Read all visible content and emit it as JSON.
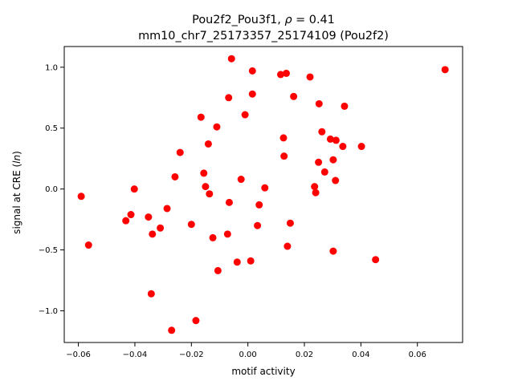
{
  "figure": {
    "title_line1_prefix": "Pou2f2_Pou3f1, ",
    "title_line1_rho": "ρ",
    "title_line1_suffix": " = 0.41",
    "title_line2": "mm10_chr7_25173357_25174109 (Pou2f2)"
  },
  "chart_data": {
    "type": "scatter",
    "title": "Pou2f2_Pou3f1, ρ = 0.41\nmm10_chr7_25173357_25174109 (Pou2f2)",
    "xlabel": "motif activity",
    "ylabel_prefix": "signal at CRE (",
    "ylabel_italic": "ln",
    "ylabel_suffix": ")",
    "xlim": [
      -0.065,
      0.076
    ],
    "ylim": [
      -1.26,
      1.17
    ],
    "xticks": [
      -0.06,
      -0.04,
      -0.02,
      0.0,
      0.02,
      0.04,
      0.06
    ],
    "xtick_labels": [
      "−0.06",
      "−0.04",
      "−0.02",
      "0.00",
      "0.02",
      "0.04",
      "0.06"
    ],
    "yticks": [
      -1.0,
      -0.5,
      0.0,
      0.5,
      1.0
    ],
    "ytick_labels": [
      "−1.0",
      "−0.5",
      "0.0",
      "0.5",
      "1.0"
    ],
    "grid": false,
    "marker_color": "#ff0000",
    "points": [
      {
        "x": -0.059,
        "y": -0.06
      },
      {
        "x": -0.0564,
        "y": -0.46
      },
      {
        "x": -0.0432,
        "y": -0.26
      },
      {
        "x": -0.0414,
        "y": -0.21
      },
      {
        "x": -0.0402,
        "y": 0.0
      },
      {
        "x": -0.0352,
        "y": -0.23
      },
      {
        "x": -0.0338,
        "y": -0.37
      },
      {
        "x": -0.0342,
        "y": -0.86
      },
      {
        "x": -0.031,
        "y": -0.32
      },
      {
        "x": -0.0286,
        "y": -0.16
      },
      {
        "x": -0.027,
        "y": -1.16
      },
      {
        "x": -0.0258,
        "y": 0.1
      },
      {
        "x": -0.024,
        "y": 0.3
      },
      {
        "x": -0.02,
        "y": -0.29
      },
      {
        "x": -0.0184,
        "y": -1.08
      },
      {
        "x": -0.0166,
        "y": 0.59
      },
      {
        "x": -0.0156,
        "y": 0.13
      },
      {
        "x": -0.015,
        "y": 0.02
      },
      {
        "x": -0.014,
        "y": 0.37
      },
      {
        "x": -0.0136,
        "y": -0.04
      },
      {
        "x": -0.0124,
        "y": -0.4
      },
      {
        "x": -0.011,
        "y": 0.51
      },
      {
        "x": -0.0106,
        "y": -0.67
      },
      {
        "x": -0.0072,
        "y": -0.37
      },
      {
        "x": -0.0068,
        "y": 0.75
      },
      {
        "x": -0.0066,
        "y": -0.11
      },
      {
        "x": -0.0058,
        "y": 1.07
      },
      {
        "x": -0.0038,
        "y": -0.6
      },
      {
        "x": -0.0024,
        "y": 0.08
      },
      {
        "x": -0.001,
        "y": 0.61
      },
      {
        "x": 0.001,
        "y": -0.59
      },
      {
        "x": 0.0016,
        "y": 0.97
      },
      {
        "x": 0.0016,
        "y": 0.78
      },
      {
        "x": 0.0034,
        "y": -0.3
      },
      {
        "x": 0.004,
        "y": -0.13
      },
      {
        "x": 0.006,
        "y": 0.01
      },
      {
        "x": 0.0116,
        "y": 0.94
      },
      {
        "x": 0.0126,
        "y": 0.42
      },
      {
        "x": 0.0128,
        "y": 0.27
      },
      {
        "x": 0.0136,
        "y": 0.95
      },
      {
        "x": 0.014,
        "y": -0.47
      },
      {
        "x": 0.015,
        "y": -0.28
      },
      {
        "x": 0.0162,
        "y": 0.76
      },
      {
        "x": 0.022,
        "y": 0.92
      },
      {
        "x": 0.0236,
        "y": 0.02
      },
      {
        "x": 0.024,
        "y": -0.03
      },
      {
        "x": 0.025,
        "y": 0.22
      },
      {
        "x": 0.0252,
        "y": 0.7
      },
      {
        "x": 0.0262,
        "y": 0.47
      },
      {
        "x": 0.0272,
        "y": 0.14
      },
      {
        "x": 0.0292,
        "y": 0.41
      },
      {
        "x": 0.0302,
        "y": 0.24
      },
      {
        "x": 0.0302,
        "y": -0.51
      },
      {
        "x": 0.031,
        "y": 0.07
      },
      {
        "x": 0.0312,
        "y": 0.4
      },
      {
        "x": 0.0336,
        "y": 0.35
      },
      {
        "x": 0.0342,
        "y": 0.68
      },
      {
        "x": 0.0402,
        "y": 0.35
      },
      {
        "x": 0.0452,
        "y": -0.58
      },
      {
        "x": 0.0698,
        "y": 0.98
      }
    ]
  }
}
